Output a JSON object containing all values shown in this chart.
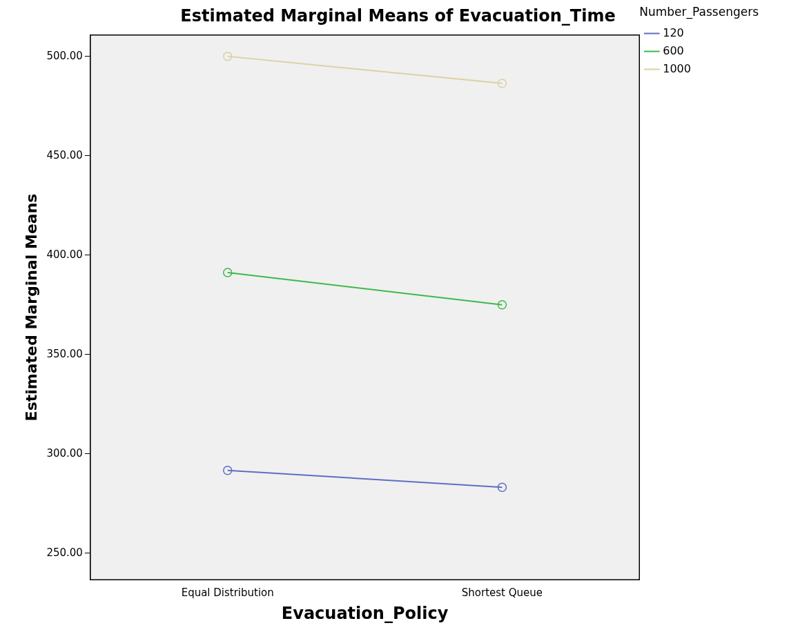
{
  "chart_data": {
    "type": "line",
    "title": "Estimated Marginal Means of Evacuation_Time",
    "xlabel": "Evacuation_Policy",
    "ylabel": "Estimated Marginal Means",
    "legend_title": "Number_Passengers",
    "categories": [
      "Equal Distribution",
      "Shortest Queue"
    ],
    "series": [
      {
        "name": "120",
        "color": "#5b6fc4",
        "values": [
          291.7,
          283.2
        ]
      },
      {
        "name": "600",
        "color": "#3cb84a",
        "values": [
          391.2,
          375.0
        ]
      },
      {
        "name": "1000",
        "color": "#d9d2a4",
        "values": [
          500.0,
          486.4
        ]
      }
    ],
    "ylim": [
      236.7,
      510.7
    ],
    "yticks": [
      {
        "value": 250,
        "label": "250.00"
      },
      {
        "value": 300,
        "label": "300.00"
      },
      {
        "value": 350,
        "label": "350.00"
      },
      {
        "value": 400,
        "label": "400.00"
      },
      {
        "value": 450,
        "label": "450.00"
      },
      {
        "value": 500,
        "label": "500.00"
      }
    ],
    "grid": false,
    "legend": "top right",
    "marker": "circle",
    "line_style": "solid"
  }
}
